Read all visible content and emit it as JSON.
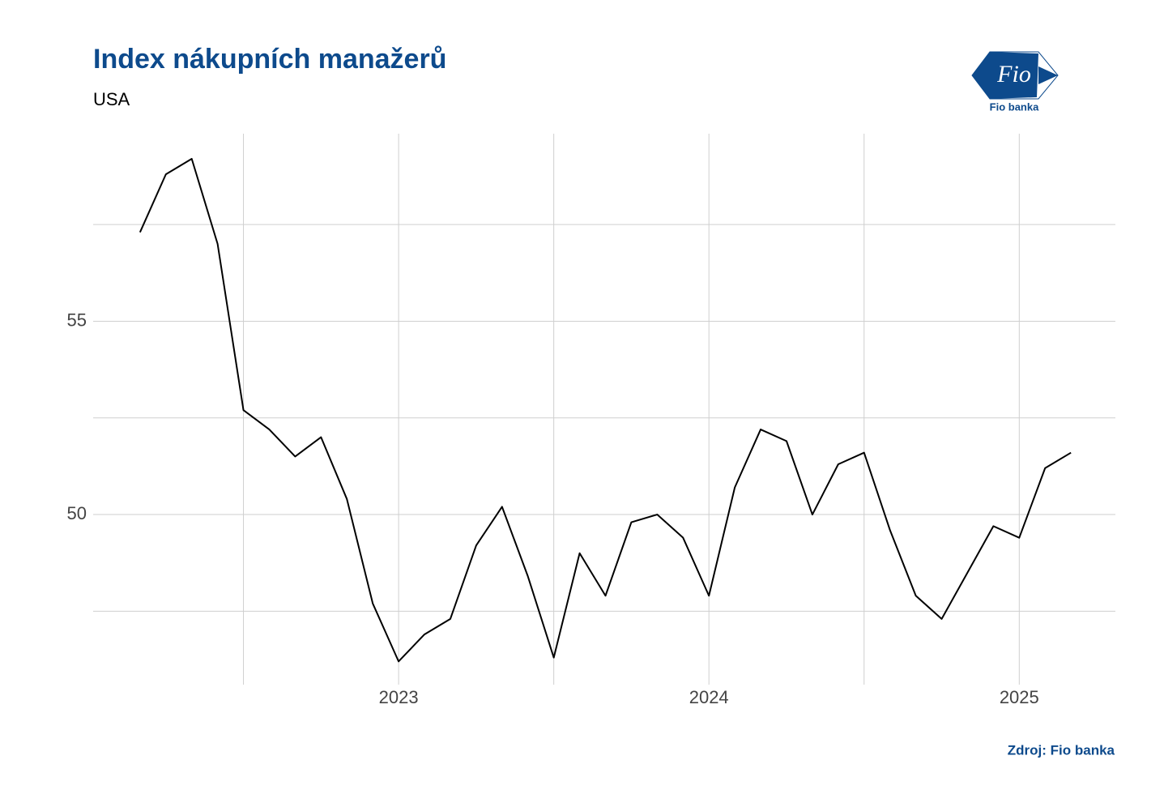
{
  "chart_data": {
    "type": "line",
    "title": "Index nákupních manažerů",
    "subtitle": "USA",
    "source": "Zdroj: Fio banka",
    "logo": {
      "mark": "Fio",
      "name": "Fio banka"
    },
    "x": [
      "2022-03",
      "2022-04",
      "2022-05",
      "2022-06",
      "2022-07",
      "2022-08",
      "2022-09",
      "2022-10",
      "2022-11",
      "2022-12",
      "2023-01",
      "2023-02",
      "2023-03",
      "2023-04",
      "2023-05",
      "2023-06",
      "2023-07",
      "2023-08",
      "2023-09",
      "2023-10",
      "2023-11",
      "2023-12",
      "2024-01",
      "2024-02",
      "2024-03",
      "2024-04",
      "2024-05",
      "2024-06",
      "2024-07",
      "2024-08",
      "2024-09",
      "2024-10",
      "2024-11",
      "2024-12",
      "2025-01",
      "2025-02",
      "2025-03"
    ],
    "series": [
      {
        "color": "#000000",
        "values": [
          57.3,
          58.8,
          59.2,
          57.0,
          52.7,
          52.2,
          51.5,
          52.0,
          50.4,
          47.7,
          46.2,
          46.9,
          47.3,
          49.2,
          50.2,
          48.4,
          46.3,
          49.0,
          47.9,
          49.8,
          50.0,
          49.4,
          47.9,
          50.7,
          52.2,
          51.9,
          50.0,
          51.3,
          51.6,
          49.6,
          47.9,
          47.3,
          48.5,
          49.7,
          49.4,
          51.2,
          51.6
        ]
      }
    ],
    "xlim": [
      "2022-01",
      "2025-05"
    ],
    "xticks": [
      {
        "value": "2023-01",
        "label": "2023"
      },
      {
        "value": "2024-01",
        "label": "2024"
      },
      {
        "value": "2025-01",
        "label": "2025"
      }
    ],
    "x_minor_ticks": [
      "2022-07",
      "2023-07",
      "2024-07"
    ],
    "ylim": [
      45.6,
      59.85
    ],
    "yticks": [
      50,
      55
    ],
    "y_minor_ticks": [
      47.5,
      52.5,
      57.5
    ],
    "grid": true
  }
}
